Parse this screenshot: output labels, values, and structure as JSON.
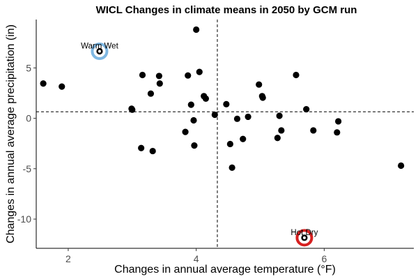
{
  "chart_data": {
    "type": "scatter",
    "title": "WICL Changes in climate means in 2050 by GCM run",
    "xlabel": "Changes in annual average temperature (°F)",
    "ylabel": "Changes in annual average precipitation (in)",
    "xlim": [
      1.5,
      7.4
    ],
    "ylim": [
      -12.9,
      9.8
    ],
    "x_ticks": [
      2,
      4,
      6
    ],
    "y_ticks": [
      -10,
      -5,
      0,
      5
    ],
    "grid": false,
    "reference_lines": {
      "x": 4.33,
      "y": 0.65
    },
    "points": [
      {
        "x": 1.61,
        "y": 3.45
      },
      {
        "x": 1.9,
        "y": 3.15
      },
      {
        "x": 2.99,
        "y": 0.95
      },
      {
        "x": 3.0,
        "y": 0.85
      },
      {
        "x": 3.14,
        "y": -2.95
      },
      {
        "x": 3.16,
        "y": 4.3
      },
      {
        "x": 3.29,
        "y": 2.45
      },
      {
        "x": 3.32,
        "y": -3.25
      },
      {
        "x": 3.42,
        "y": 4.2
      },
      {
        "x": 3.43,
        "y": 3.45
      },
      {
        "x": 3.83,
        "y": -1.35
      },
      {
        "x": 3.87,
        "y": 4.25
      },
      {
        "x": 3.92,
        "y": 1.35
      },
      {
        "x": 3.96,
        "y": -0.2
      },
      {
        "x": 3.97,
        "y": -2.7
      },
      {
        "x": 4.0,
        "y": 8.8
      },
      {
        "x": 4.05,
        "y": 4.6
      },
      {
        "x": 4.12,
        "y": 2.2
      },
      {
        "x": 4.15,
        "y": 1.95
      },
      {
        "x": 4.29,
        "y": 0.35
      },
      {
        "x": 4.47,
        "y": 1.4
      },
      {
        "x": 4.53,
        "y": -2.55
      },
      {
        "x": 4.56,
        "y": -4.9
      },
      {
        "x": 4.64,
        "y": -0.05
      },
      {
        "x": 4.73,
        "y": -2.05
      },
      {
        "x": 4.81,
        "y": 0.15
      },
      {
        "x": 4.98,
        "y": 3.35
      },
      {
        "x": 5.03,
        "y": 2.2
      },
      {
        "x": 5.04,
        "y": 2.05
      },
      {
        "x": 5.27,
        "y": -1.95
      },
      {
        "x": 5.3,
        "y": 0.25
      },
      {
        "x": 5.33,
        "y": -1.2
      },
      {
        "x": 5.56,
        "y": 4.3
      },
      {
        "x": 5.72,
        "y": 0.9
      },
      {
        "x": 5.83,
        "y": -1.2
      },
      {
        "x": 6.2,
        "y": -1.4
      },
      {
        "x": 6.22,
        "y": -0.3
      },
      {
        "x": 7.2,
        "y": -4.7
      }
    ],
    "highlights": [
      {
        "label": "Warm Wet",
        "x": 2.49,
        "y": 6.65,
        "color": "#7fb8e3"
      },
      {
        "label": "Hot Dry",
        "x": 5.69,
        "y": -11.85,
        "color": "#d62020"
      }
    ]
  }
}
